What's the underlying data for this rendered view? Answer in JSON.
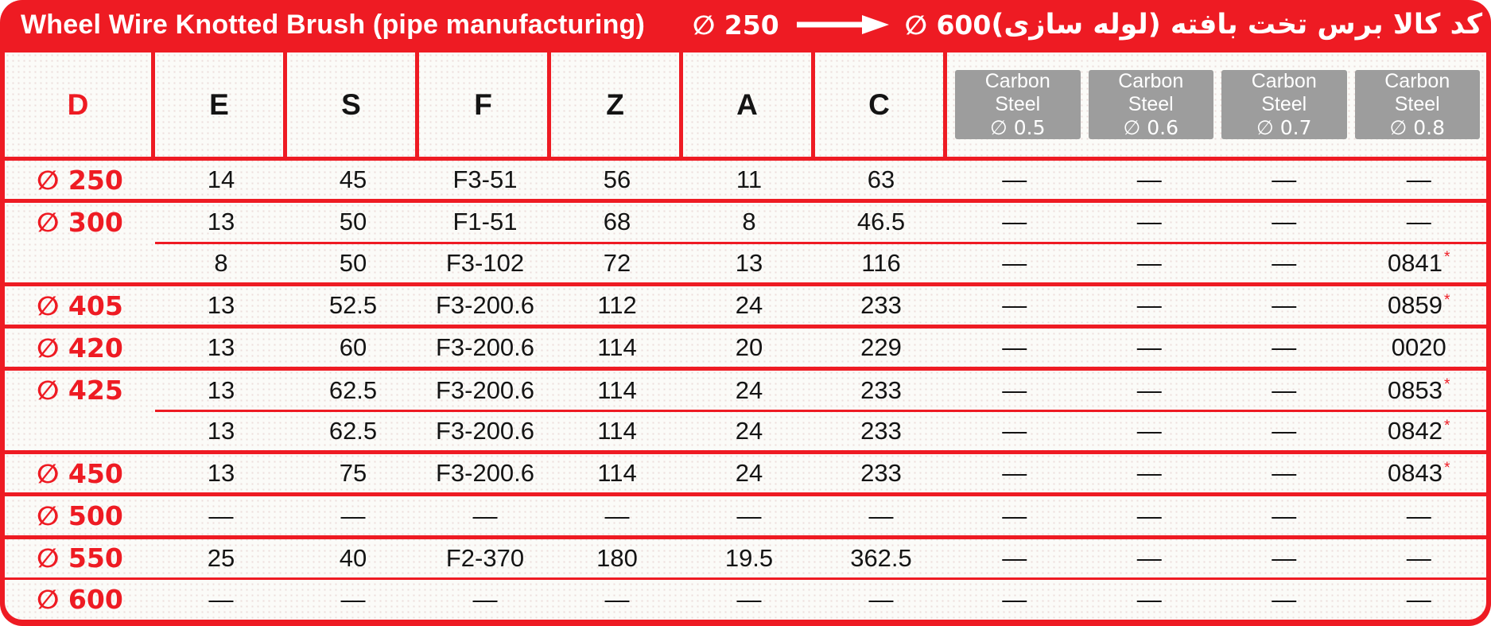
{
  "header_band": {
    "title": "Wheel Wire Knotted Brush (pipe manufacturing)",
    "diameter_from": "∅ 250",
    "diameter_to": "∅ 600",
    "persian_title": "کد کالا برس تخت بافته (لوله سازی)"
  },
  "table": {
    "columns": [
      "D",
      "E",
      "S",
      "F",
      "Z",
      "A",
      "C"
    ],
    "carbon_columns": [
      {
        "line1": "Carbon",
        "line2": "Steel",
        "diameter": "∅ 0.5"
      },
      {
        "line1": "Carbon",
        "line2": "Steel",
        "diameter": "∅ 0.6"
      },
      {
        "line1": "Carbon",
        "line2": "Steel",
        "diameter": "∅ 0.7"
      },
      {
        "line1": "Carbon",
        "line2": "Steel",
        "diameter": "∅ 0.8"
      }
    ],
    "groups": [
      {
        "d": "∅ 250",
        "rows": [
          [
            "14",
            "45",
            "F3-51",
            "56",
            "11",
            "63",
            "—",
            "—",
            "—",
            "—"
          ]
        ]
      },
      {
        "d": "∅ 300",
        "rows": [
          [
            "13",
            "50",
            "F1-51",
            "68",
            "8",
            "46.5",
            "—",
            "—",
            "—",
            "—"
          ],
          [
            "8",
            "50",
            "F3-102",
            "72",
            "13",
            "116",
            "—",
            "—",
            "—",
            "0841*"
          ]
        ]
      },
      {
        "d": "∅ 405",
        "rows": [
          [
            "13",
            "52.5",
            "F3-200.6",
            "112",
            "24",
            "233",
            "—",
            "—",
            "—",
            "0859*"
          ]
        ]
      },
      {
        "d": "∅ 420",
        "rows": [
          [
            "13",
            "60",
            "F3-200.6",
            "114",
            "20",
            "229",
            "—",
            "—",
            "—",
            "0020"
          ]
        ]
      },
      {
        "d": "∅ 425",
        "rows": [
          [
            "13",
            "62.5",
            "F3-200.6",
            "114",
            "24",
            "233",
            "—",
            "—",
            "—",
            "0853*"
          ],
          [
            "13",
            "62.5",
            "F3-200.6",
            "114",
            "24",
            "233",
            "—",
            "—",
            "—",
            "0842*"
          ]
        ]
      },
      {
        "d": "∅ 450",
        "rows": [
          [
            "13",
            "75",
            "F3-200.6",
            "114",
            "24",
            "233",
            "—",
            "—",
            "—",
            "0843*"
          ]
        ]
      },
      {
        "d": "∅ 500",
        "rows": [
          [
            "—",
            "—",
            "—",
            "—",
            "—",
            "—",
            "—",
            "—",
            "—",
            "—"
          ]
        ]
      },
      {
        "d": "∅ 550",
        "rows": [
          [
            "25",
            "40",
            "F2-370",
            "180",
            "19.5",
            "362.5",
            "—",
            "—",
            "—",
            "—"
          ]
        ]
      },
      {
        "d": "∅ 600",
        "rows": [
          [
            "—",
            "—",
            "—",
            "—",
            "—",
            "—",
            "—",
            "—",
            "—",
            "—"
          ]
        ]
      }
    ]
  },
  "colors": {
    "accent_red": "#ee1b23",
    "carbon_header_gray": "#9d9d9d"
  }
}
